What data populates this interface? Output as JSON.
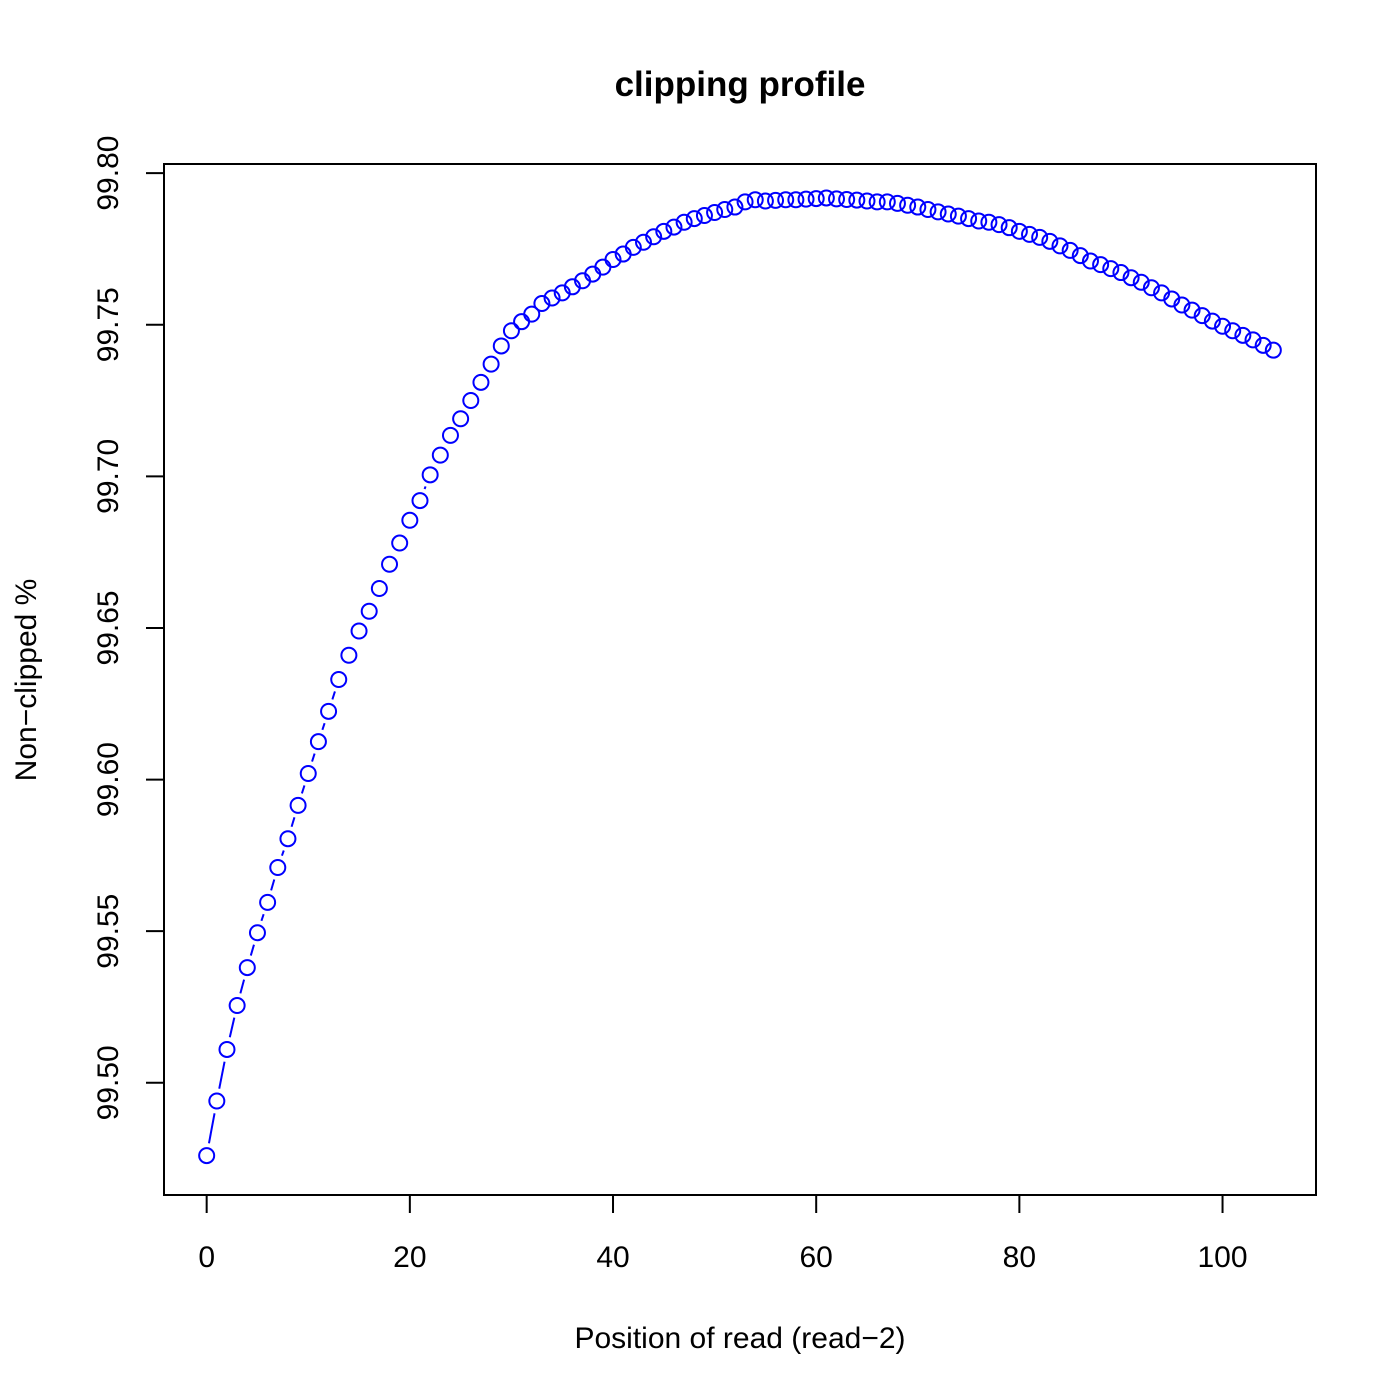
{
  "chart_data": {
    "type": "scatter",
    "title": "clipping profile",
    "xlabel": "Position of read (read−2)",
    "ylabel": "Non−clipped %",
    "xlim": [
      -4.2,
      109.2
    ],
    "ylim": [
      99.463,
      99.803
    ],
    "x_ticks": [
      0,
      20,
      40,
      60,
      80,
      100
    ],
    "x_tick_labels": [
      "0",
      "20",
      "40",
      "60",
      "80",
      "100"
    ],
    "y_ticks": [
      99.5,
      99.55,
      99.6,
      99.65,
      99.7,
      99.75,
      99.8
    ],
    "y_tick_labels": [
      "99.50",
      "99.55",
      "99.60",
      "99.65",
      "99.70",
      "99.75",
      "99.80"
    ],
    "grid": false,
    "marker": "open-circle",
    "color": "#0000ff",
    "series": [
      {
        "x": [
          0,
          1,
          2,
          3,
          4,
          5,
          6,
          7,
          8,
          9,
          10,
          11,
          12,
          13,
          14,
          15,
          16,
          17,
          18,
          19,
          20,
          21,
          22,
          23,
          24,
          25,
          26,
          27,
          28,
          29,
          30,
          31,
          32,
          33,
          34,
          35,
          36,
          37,
          38,
          39,
          40,
          41,
          42,
          43,
          44,
          45,
          46,
          47,
          48,
          49,
          50,
          51,
          52,
          53,
          54,
          55,
          56,
          57,
          58,
          59,
          60,
          61,
          62,
          63,
          64,
          65,
          66,
          67,
          68,
          69,
          70,
          71,
          72,
          73,
          74,
          75,
          76,
          77,
          78,
          79,
          80,
          81,
          82,
          83,
          84,
          85,
          86,
          87,
          88,
          89,
          90,
          91,
          92,
          93,
          94,
          95,
          96,
          97,
          98,
          99,
          100,
          101,
          102,
          103,
          104,
          105
        ],
        "y": [
          99.476,
          99.494,
          99.511,
          99.5255,
          99.538,
          99.5495,
          99.5595,
          99.571,
          99.5805,
          99.5915,
          99.602,
          99.6125,
          99.6225,
          99.633,
          99.641,
          99.649,
          99.6555,
          99.663,
          99.671,
          99.678,
          99.6855,
          99.692,
          99.7005,
          99.707,
          99.7135,
          99.719,
          99.725,
          99.731,
          99.737,
          99.743,
          99.748,
          99.751,
          99.7535,
          99.757,
          99.7588,
          99.7605,
          99.7625,
          99.7645,
          99.7667,
          99.769,
          99.7715,
          99.7733,
          99.7755,
          99.7772,
          99.779,
          99.7808,
          99.7822,
          99.7838,
          99.785,
          99.786,
          99.787,
          99.788,
          99.7888,
          99.7905,
          99.7912,
          99.7908,
          99.791,
          99.7912,
          99.7912,
          99.7914,
          99.7916,
          99.7918,
          99.7915,
          99.7913,
          99.7911,
          99.7908,
          99.7905,
          99.7905,
          99.79,
          99.7894,
          99.7888,
          99.788,
          99.7872,
          99.7865,
          99.7858,
          99.785,
          99.7842,
          99.7838,
          99.783,
          99.782,
          99.7808,
          99.7798,
          99.7788,
          99.7775,
          99.776,
          99.7745,
          99.7728,
          99.771,
          99.7698,
          99.7685,
          99.7672,
          99.7655,
          99.764,
          99.7622,
          99.7605,
          99.7585,
          99.7565,
          99.7548,
          99.753,
          99.7512,
          99.7495,
          99.748,
          99.7465,
          99.745,
          99.7432,
          99.7416
        ]
      }
    ]
  }
}
